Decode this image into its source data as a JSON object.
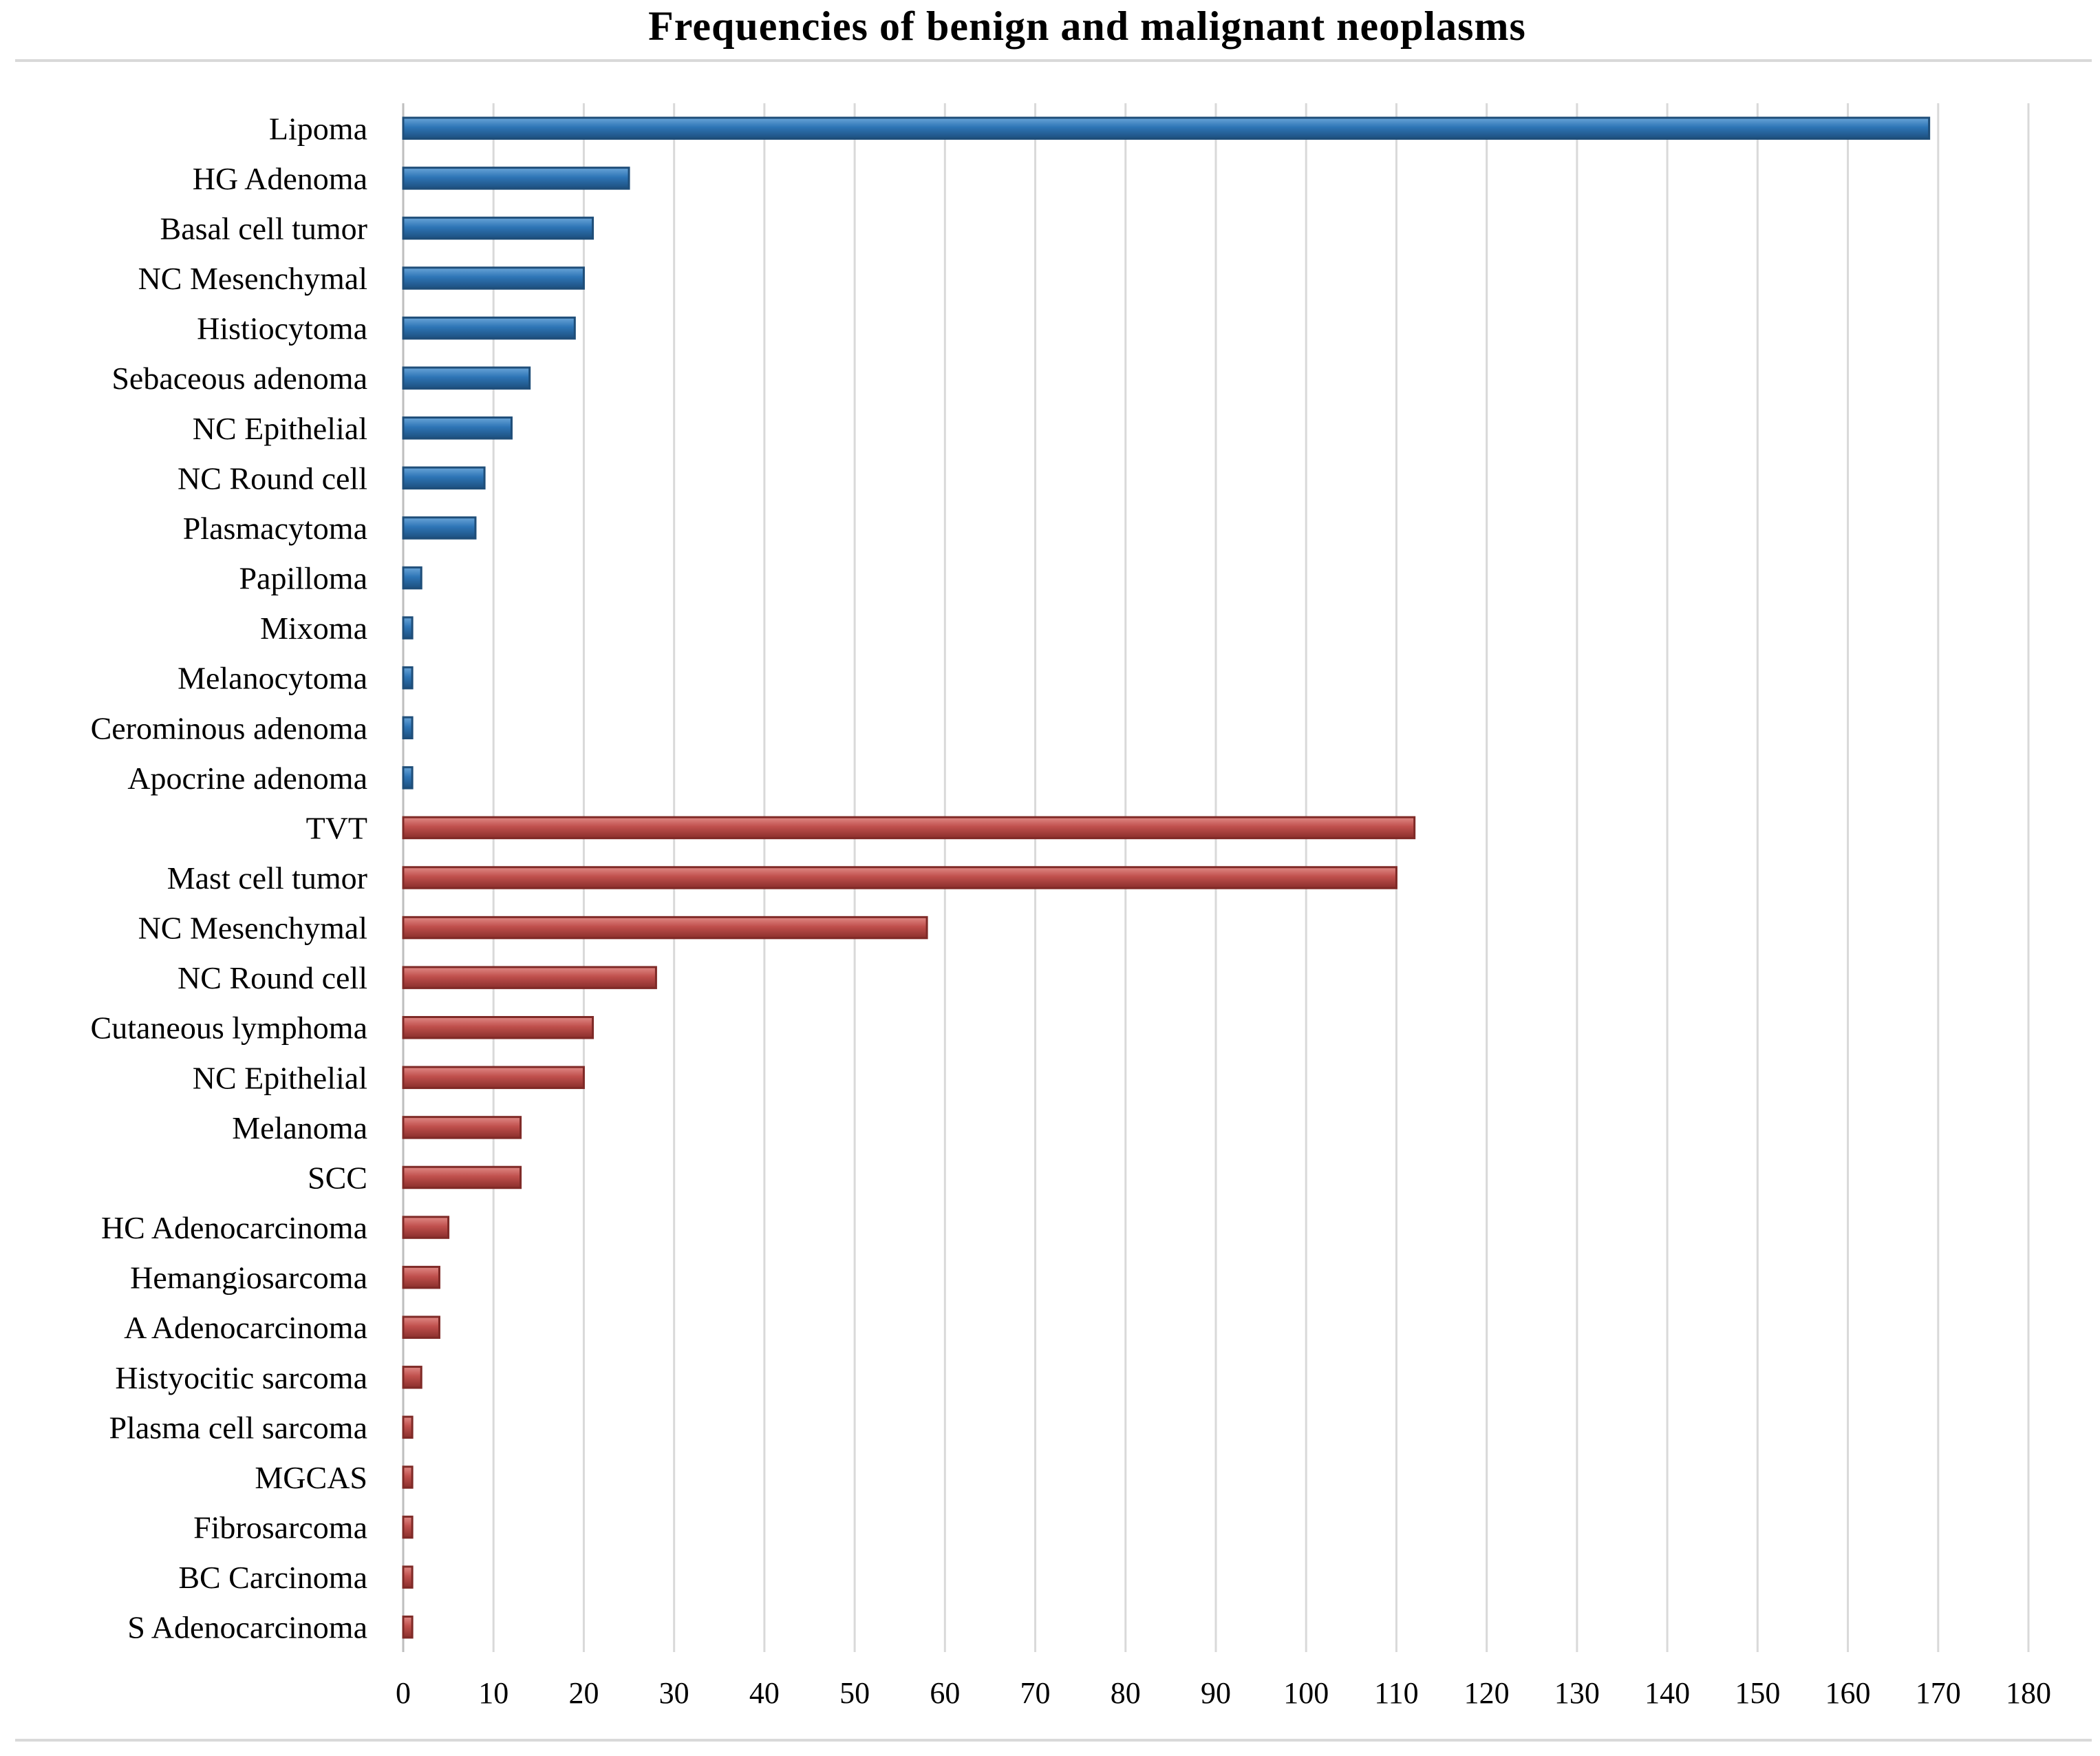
{
  "chart_data": {
    "type": "bar",
    "orientation": "horizontal",
    "title": "Frequencies of benign and malignant neoplasms",
    "xlabel": "",
    "ylabel": "",
    "xlim": [
      0,
      180
    ],
    "x_ticks": [
      "0",
      "10",
      "20",
      "30",
      "40",
      "50",
      "60",
      "70",
      "80",
      "90",
      "100",
      "110",
      "120",
      "130",
      "140",
      "150",
      "160",
      "170",
      "180"
    ],
    "grid": "vertical",
    "legend": "none",
    "series": [
      {
        "color": "#2e75b6",
        "categories": [
          "Lipoma",
          "HG Adenoma",
          "Basal cell tumor",
          "NC Mesenchymal",
          "Histiocytoma",
          "Sebaceous adenoma",
          "NC Epithelial",
          "NC Round cell",
          "Plasmacytoma",
          "Papilloma",
          "Mixoma",
          "Melanocytoma",
          "Cerominous adenoma",
          "Apocrine adenoma"
        ],
        "values": [
          169,
          25,
          21,
          20,
          19,
          14,
          12,
          9,
          8,
          2,
          1,
          1,
          1,
          1
        ]
      },
      {
        "color": "#c0504d",
        "categories": [
          "TVT",
          "Mast cell tumor",
          "NC Mesenchymal",
          "NC Round cell",
          "Cutaneous lymphoma",
          "NC Epithelial",
          "Melanoma",
          "SCC",
          "HC Adenocarcinoma",
          "Hemangiosarcoma",
          "A Adenocarcinoma",
          "Histyocitic sarcoma",
          "Plasma cell sarcoma",
          "MGCAS",
          "Fibrosarcoma",
          "BC Carcinoma",
          "S Adenocarcinoma"
        ],
        "values": [
          112,
          110,
          58,
          28,
          21,
          20,
          13,
          13,
          5,
          4,
          4,
          2,
          1,
          1,
          1,
          1,
          1
        ]
      }
    ]
  }
}
